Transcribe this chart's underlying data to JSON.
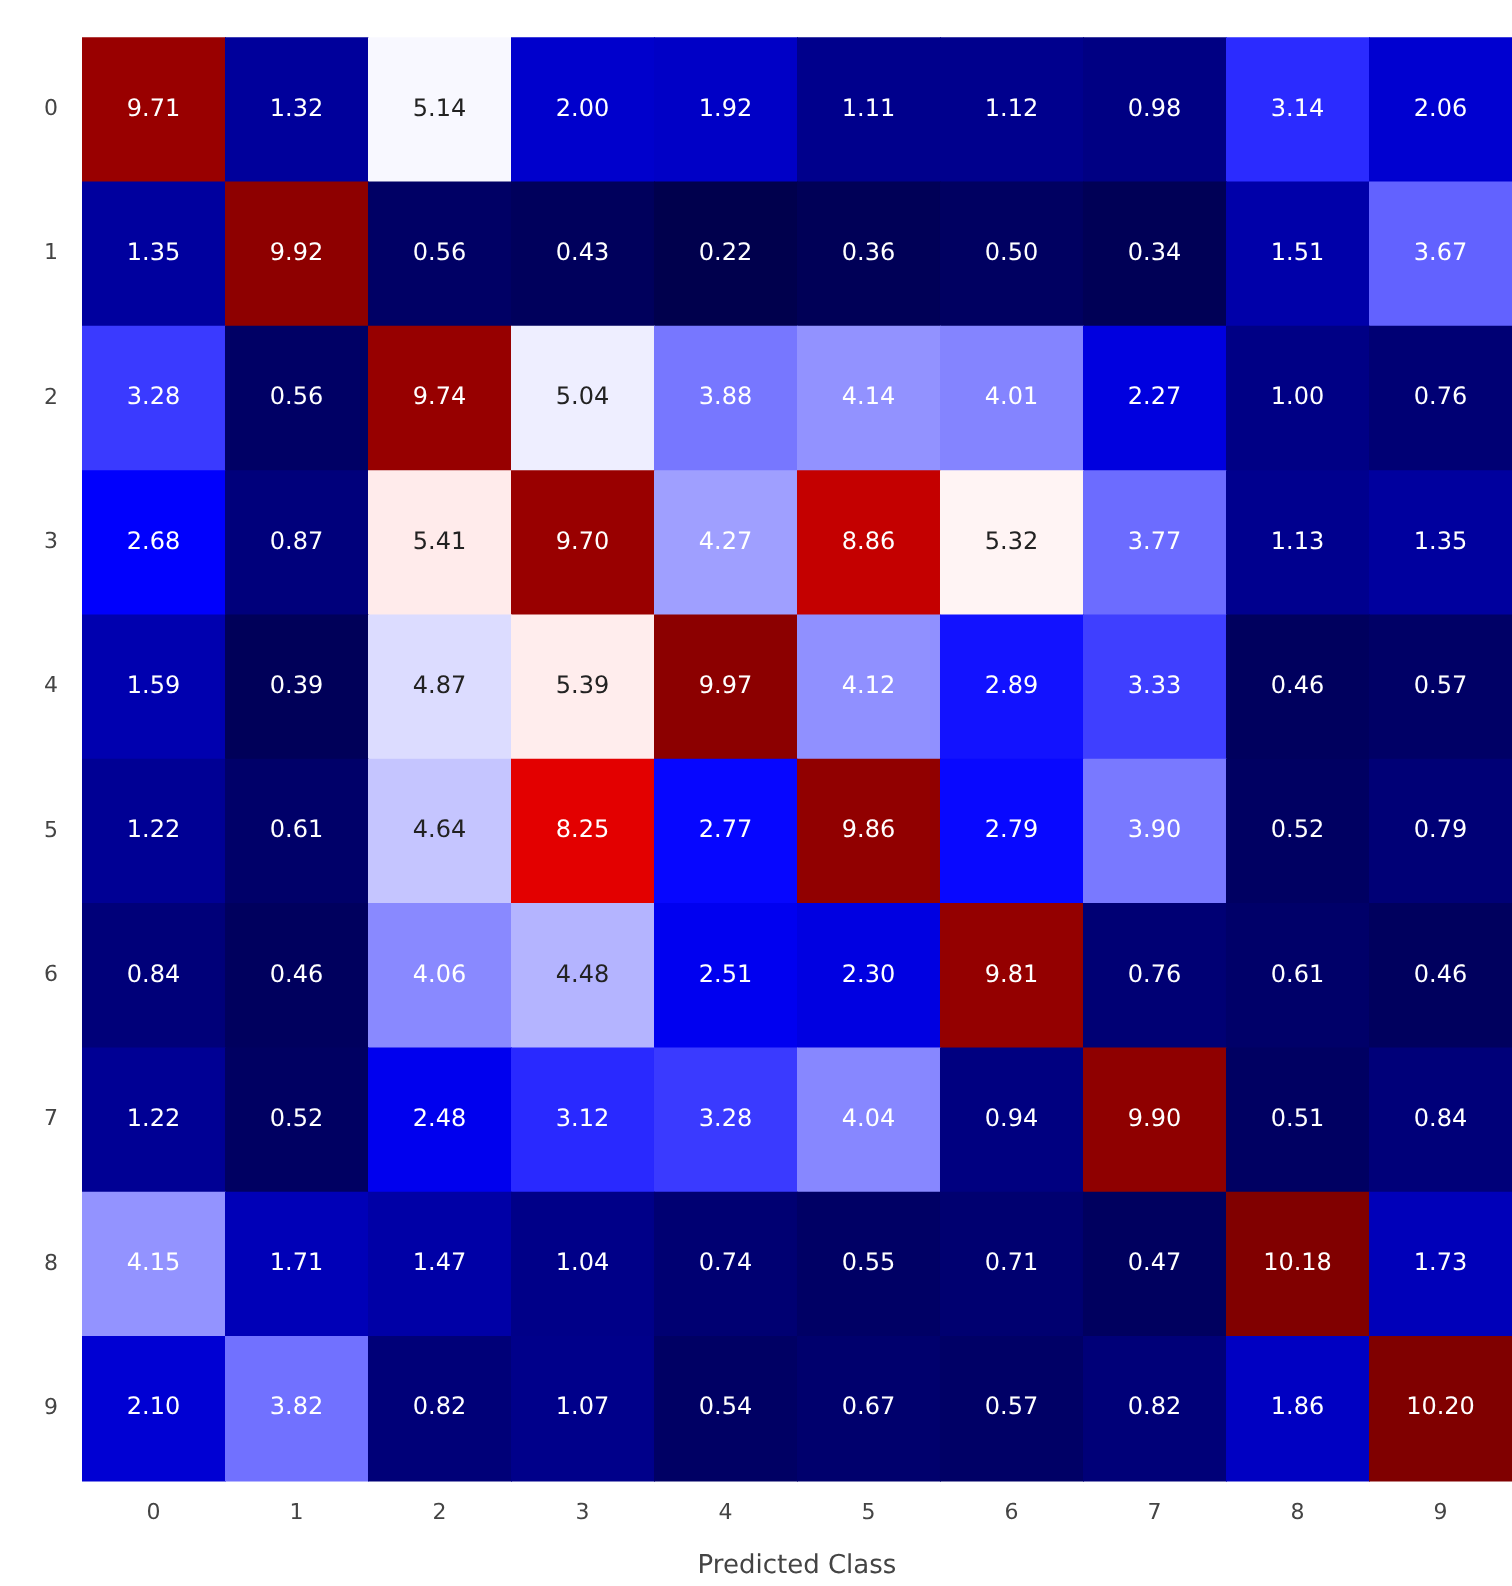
{
  "chart_data": {
    "type": "heatmap",
    "xlabel": "Predicted Class",
    "categories": [
      "0",
      "1",
      "2",
      "3",
      "4",
      "5",
      "6",
      "7",
      "8",
      "9"
    ],
    "y_categories": [
      "0",
      "1",
      "2",
      "3",
      "4",
      "5",
      "6",
      "7",
      "8",
      "9"
    ],
    "cell_labels": [
      [
        "9.71",
        "1.32",
        "5.14",
        "2.00",
        "1.92",
        "1.11",
        "1.12",
        "0.98",
        "3.14",
        "2.06"
      ],
      [
        "1.35",
        "9.92",
        "0.56",
        "0.43",
        "0.22",
        "0.36",
        "0.50",
        "0.34",
        "1.51",
        "3.67"
      ],
      [
        "3.28",
        "0.56",
        "9.74",
        "5.04",
        "3.88",
        "4.14",
        "4.01",
        "2.27",
        "1.00",
        "0.76"
      ],
      [
        "2.68",
        "0.87",
        "5.41",
        "9.70",
        "4.27",
        "8.86",
        "5.32",
        "3.77",
        "1.13",
        "1.35"
      ],
      [
        "1.59",
        "0.39",
        "4.87",
        "5.39",
        "9.97",
        "4.12",
        "2.89",
        "3.33",
        "0.46",
        "0.57"
      ],
      [
        "1.22",
        "0.61",
        "4.64",
        "8.25",
        "2.77",
        "9.86",
        "2.79",
        "3.90",
        "0.52",
        "0.79"
      ],
      [
        "0.84",
        "0.46",
        "4.06",
        "4.48",
        "2.51",
        "2.30",
        "9.81",
        "0.76",
        "0.61",
        "0.46"
      ],
      [
        "1.22",
        "0.52",
        "2.48",
        "3.12",
        "3.28",
        "4.04",
        "0.94",
        "9.90",
        "0.51",
        "0.84"
      ],
      [
        "4.15",
        "1.71",
        "1.47",
        "1.04",
        "0.74",
        "0.55",
        "0.71",
        "0.47",
        "10.18",
        "1.73"
      ],
      [
        "2.10",
        "3.82",
        "0.82",
        "1.07",
        "0.54",
        "0.67",
        "0.57",
        "0.82",
        "1.86",
        "10.20"
      ]
    ],
    "cells": [
      [
        9.71,
        1.32,
        5.14,
        2.0,
        1.92,
        1.11,
        1.12,
        0.98,
        3.14,
        2.06
      ],
      [
        1.35,
        9.92,
        0.56,
        0.43,
        0.22,
        0.36,
        0.5,
        0.34,
        1.51,
        3.67
      ],
      [
        3.28,
        0.56,
        9.74,
        5.04,
        3.88,
        4.14,
        4.01,
        2.27,
        1.0,
        0.76
      ],
      [
        2.68,
        0.87,
        5.41,
        9.7,
        4.27,
        8.86,
        5.32,
        3.77,
        1.13,
        1.35
      ],
      [
        1.59,
        0.39,
        4.87,
        5.39,
        9.97,
        4.12,
        2.89,
        3.33,
        0.46,
        0.57
      ],
      [
        1.22,
        0.61,
        4.64,
        8.25,
        2.77,
        9.86,
        2.79,
        3.9,
        0.52,
        0.79
      ],
      [
        0.84,
        0.46,
        4.06,
        4.48,
        2.51,
        2.3,
        9.81,
        0.76,
        0.61,
        0.46
      ],
      [
        1.22,
        0.52,
        2.48,
        3.12,
        3.28,
        4.04,
        0.94,
        9.9,
        0.51,
        0.84
      ],
      [
        4.15,
        1.71,
        1.47,
        1.04,
        0.74,
        0.55,
        0.71,
        0.47,
        10.18,
        1.73
      ],
      [
        2.1,
        3.82,
        0.82,
        1.07,
        0.54,
        0.67,
        0.57,
        0.82,
        1.86,
        10.2
      ]
    ],
    "data_labels": true
  }
}
